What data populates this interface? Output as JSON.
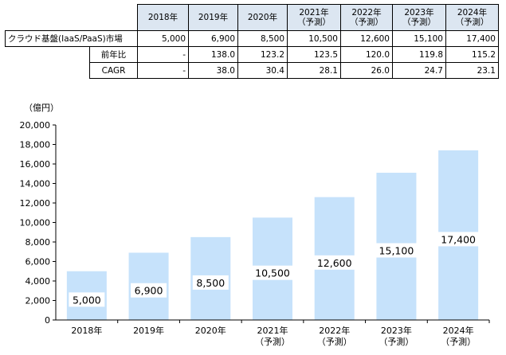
{
  "table": {
    "years": [
      "2018年",
      "2019年",
      "2020年",
      "2021年\n（予測）",
      "2022年\n（予測）",
      "2023年\n（予測）",
      "2024年\n（予測）"
    ],
    "rows": [
      {
        "label": "クラウド基盤(IaaS/PaaS)市場",
        "values": [
          "5,000",
          "6,900",
          "8,500",
          "10,500",
          "12,600",
          "15,100",
          "17,400"
        ]
      },
      {
        "label": "前年比",
        "values": [
          "-",
          "138.0",
          "123.2",
          "123.5",
          "120.0",
          "119.8",
          "115.2"
        ]
      },
      {
        "label": "CAGR",
        "values": [
          "-",
          "38.0",
          "30.4",
          "28.1",
          "26.0",
          "24.7",
          "23.1"
        ]
      }
    ]
  },
  "chart_data": {
    "type": "bar",
    "ylabel": "（億円）",
    "categories": [
      "2018年",
      "2019年",
      "2020年",
      "2021年\n（予測）",
      "2022年\n（予測）",
      "2023年\n（予測）",
      "2024年\n（予測）"
    ],
    "values": [
      5000,
      6900,
      8500,
      10500,
      12600,
      15100,
      17400
    ],
    "value_labels": [
      "5,000",
      "6,900",
      "8,500",
      "10,500",
      "12,600",
      "15,100",
      "17,400"
    ],
    "ylim": [
      0,
      20000
    ],
    "yticks": [
      0,
      2000,
      4000,
      6000,
      8000,
      10000,
      12000,
      14000,
      16000,
      18000,
      20000
    ],
    "ytick_labels": [
      "0",
      "2,000",
      "4,000",
      "6,000",
      "8,000",
      "10,000",
      "12,000",
      "14,000",
      "16,000",
      "18,000",
      "20,000"
    ],
    "grid": false,
    "legend": "none",
    "bar_color": "#c6e2fb",
    "label_box_color": "#ffffff"
  }
}
